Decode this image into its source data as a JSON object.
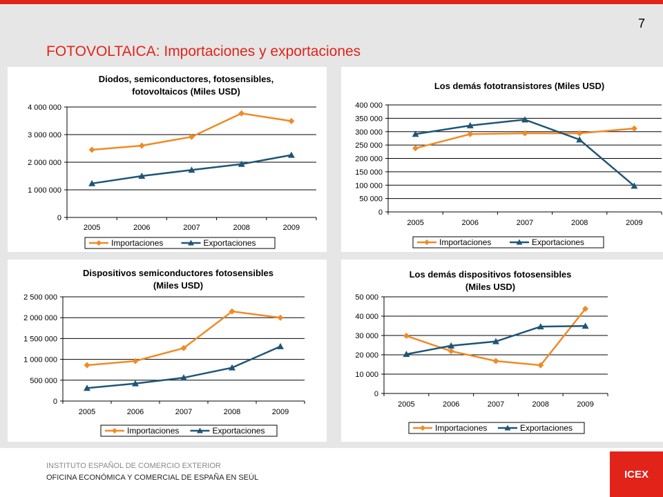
{
  "page": {
    "number": "7",
    "title": "FOTOVOLTAICA: Importaciones y exportaciones",
    "footer_line1": "INSTITUTO ESPAÑOL DE COMERCIO EXTERIOR",
    "footer_line2": "OFICINA ECONÓMICA Y COMERCIAL DE ESPAÑA EN SEÚL",
    "logo_text": "ICEX"
  },
  "colors": {
    "accent": "#e2231a",
    "importaciones": "#f08a24",
    "exportaciones": "#1f5577"
  },
  "chart_data": [
    {
      "type": "line",
      "title": [
        "Diodos, semiconductores, fotosensibles,",
        "fotovoltaicos (Miles USD)"
      ],
      "categories": [
        "2005",
        "2006",
        "2007",
        "2008",
        "2009"
      ],
      "series": [
        {
          "name": "Importaciones",
          "values": [
            2450000,
            2600000,
            2920000,
            3770000,
            3490000
          ]
        },
        {
          "name": "Exportaciones",
          "values": [
            1230000,
            1500000,
            1720000,
            1930000,
            2260000
          ]
        }
      ],
      "ylim": [
        0,
        4000000
      ],
      "yticks": [
        "0",
        "1 000 000",
        "2 000 000",
        "3 000 000",
        "4 000 000"
      ],
      "grid": true,
      "legend": "bottom"
    },
    {
      "type": "line",
      "title": [
        "Los demás fototransistores (Miles USD)"
      ],
      "categories": [
        "2005",
        "2006",
        "2007",
        "2008",
        "2009"
      ],
      "series": [
        {
          "name": "Importaciones",
          "values": [
            238000,
            291000,
            294000,
            294000,
            312000
          ]
        },
        {
          "name": "Exportaciones",
          "values": [
            291000,
            323000,
            345000,
            270000,
            97000
          ]
        }
      ],
      "ylim": [
        0,
        400000
      ],
      "yticks": [
        "0",
        "50 000",
        "100 000",
        "150 000",
        "200 000",
        "250 000",
        "300 000",
        "350 000",
        "400 000"
      ],
      "grid": true,
      "legend": "bottom"
    },
    {
      "type": "line",
      "title": [
        "Dispositivos semiconductores fotosensibles",
        "(Miles USD)"
      ],
      "categories": [
        "2005",
        "2006",
        "2007",
        "2008",
        "2009"
      ],
      "series": [
        {
          "name": "Importaciones",
          "values": [
            860000,
            960000,
            1270000,
            2150000,
            2000000
          ]
        },
        {
          "name": "Exportaciones",
          "values": [
            310000,
            420000,
            560000,
            800000,
            1310000
          ]
        }
      ],
      "ylim": [
        0,
        2500000
      ],
      "yticks": [
        "0",
        "500 000",
        "1 000 000",
        "1 500 000",
        "2 000 000",
        "2 500 000"
      ],
      "grid": true,
      "legend": "bottom"
    },
    {
      "type": "line",
      "title": [
        "Los demás dispositivos fotosensibles",
        "(Miles USD)"
      ],
      "categories": [
        "2005",
        "2006",
        "2007",
        "2008",
        "2009"
      ],
      "series": [
        {
          "name": "Importaciones",
          "values": [
            29800,
            21900,
            16800,
            14600,
            43800
          ]
        },
        {
          "name": "Exportaciones",
          "values": [
            20300,
            24700,
            26900,
            34600,
            34900
          ]
        }
      ],
      "ylim": [
        0,
        50000
      ],
      "yticks": [
        "0",
        "10 000",
        "20 000",
        "30 000",
        "40 000",
        "50 000"
      ],
      "grid": true,
      "legend": "bottom"
    }
  ]
}
